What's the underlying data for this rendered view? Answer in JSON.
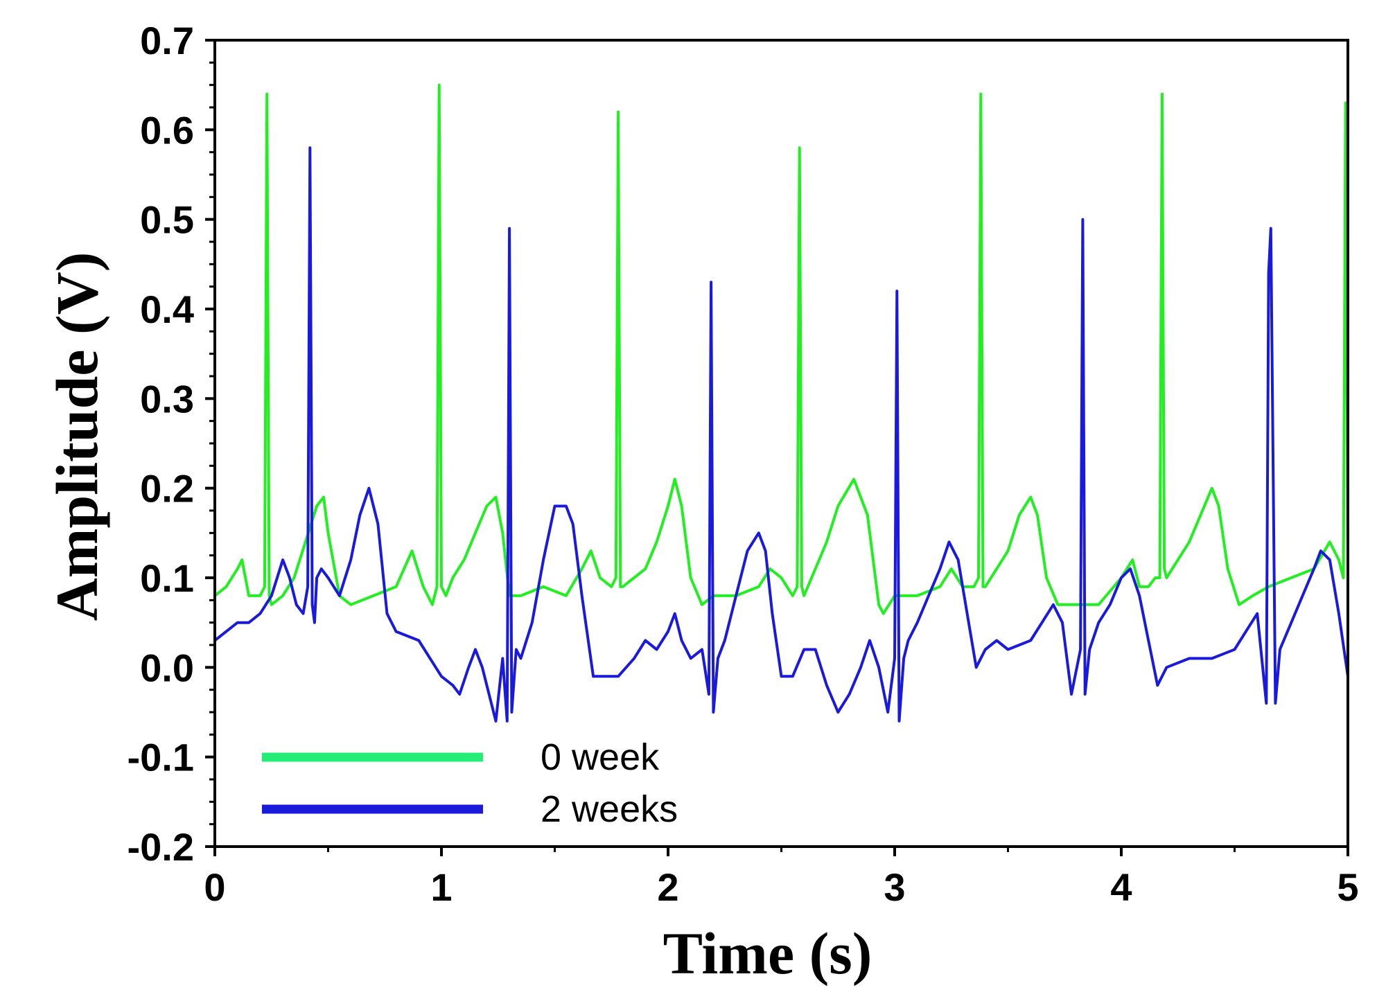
{
  "chart_data": {
    "type": "line",
    "title": "",
    "xlabel": "Time (s)",
    "ylabel": "Amplitude (V)",
    "xlim": [
      0,
      5
    ],
    "ylim": [
      -0.2,
      0.7
    ],
    "x_ticks": [
      0,
      1,
      2,
      3,
      4,
      5
    ],
    "x_tick_labels": [
      "0",
      "1",
      "2",
      "3",
      "4",
      "5"
    ],
    "y_ticks": [
      -0.2,
      -0.1,
      0.0,
      0.1,
      0.2,
      0.3,
      0.4,
      0.5,
      0.6,
      0.7
    ],
    "y_tick_labels": [
      "-0.2",
      "-0.1",
      "0.0",
      "0.1",
      "0.2",
      "0.3",
      "0.4",
      "0.5",
      "0.6",
      "0.7"
    ],
    "grid": false,
    "legend_position": "bottom-left",
    "series": [
      {
        "name": "0 week",
        "color": "#22ee22",
        "x": [
          0.0,
          0.05,
          0.1,
          0.12,
          0.15,
          0.2,
          0.22,
          0.23,
          0.24,
          0.25,
          0.3,
          0.35,
          0.4,
          0.45,
          0.48,
          0.5,
          0.55,
          0.6,
          0.7,
          0.8,
          0.87,
          0.92,
          0.96,
          0.98,
          0.99,
          1.0,
          1.02,
          1.05,
          1.1,
          1.15,
          1.2,
          1.24,
          1.27,
          1.3,
          1.35,
          1.45,
          1.55,
          1.62,
          1.66,
          1.7,
          1.75,
          1.77,
          1.78,
          1.79,
          1.8,
          1.85,
          1.9,
          1.95,
          2.0,
          2.03,
          2.06,
          2.1,
          2.15,
          2.2,
          2.3,
          2.4,
          2.45,
          2.5,
          2.55,
          2.57,
          2.58,
          2.59,
          2.6,
          2.65,
          2.7,
          2.75,
          2.82,
          2.88,
          2.93,
          2.95,
          3.0,
          3.1,
          3.2,
          3.25,
          3.3,
          3.35,
          3.37,
          3.38,
          3.39,
          3.4,
          3.45,
          3.5,
          3.55,
          3.6,
          3.63,
          3.67,
          3.72,
          3.8,
          3.9,
          4.0,
          4.05,
          4.08,
          4.12,
          4.15,
          4.17,
          4.18,
          4.19,
          4.2,
          4.25,
          4.3,
          4.35,
          4.4,
          4.43,
          4.47,
          4.52,
          4.58,
          4.65,
          4.75,
          4.85,
          4.92,
          4.96,
          4.98,
          4.99,
          5.0
        ],
        "values": [
          0.08,
          0.09,
          0.11,
          0.12,
          0.08,
          0.08,
          0.09,
          0.64,
          0.08,
          0.07,
          0.08,
          0.1,
          0.14,
          0.18,
          0.19,
          0.15,
          0.08,
          0.07,
          0.08,
          0.09,
          0.13,
          0.09,
          0.07,
          0.09,
          0.65,
          0.09,
          0.08,
          0.1,
          0.12,
          0.15,
          0.18,
          0.19,
          0.15,
          0.08,
          0.08,
          0.09,
          0.08,
          0.11,
          0.13,
          0.1,
          0.09,
          0.1,
          0.62,
          0.09,
          0.09,
          0.1,
          0.11,
          0.14,
          0.18,
          0.21,
          0.18,
          0.1,
          0.07,
          0.08,
          0.08,
          0.09,
          0.11,
          0.1,
          0.08,
          0.09,
          0.58,
          0.09,
          0.08,
          0.11,
          0.14,
          0.18,
          0.21,
          0.17,
          0.07,
          0.06,
          0.08,
          0.08,
          0.09,
          0.11,
          0.09,
          0.09,
          0.1,
          0.64,
          0.09,
          0.09,
          0.11,
          0.13,
          0.17,
          0.19,
          0.17,
          0.1,
          0.07,
          0.07,
          0.07,
          0.1,
          0.12,
          0.09,
          0.09,
          0.1,
          0.1,
          0.64,
          0.11,
          0.1,
          0.12,
          0.14,
          0.17,
          0.2,
          0.18,
          0.11,
          0.07,
          0.08,
          0.09,
          0.1,
          0.11,
          0.14,
          0.12,
          0.1,
          0.63,
          0.12
        ]
      },
      {
        "name": "2 weeks",
        "color": "#1a1adc",
        "x": [
          0.0,
          0.05,
          0.1,
          0.15,
          0.2,
          0.25,
          0.3,
          0.33,
          0.36,
          0.39,
          0.41,
          0.42,
          0.43,
          0.44,
          0.45,
          0.47,
          0.5,
          0.55,
          0.6,
          0.64,
          0.68,
          0.72,
          0.76,
          0.8,
          0.9,
          0.95,
          1.0,
          1.05,
          1.08,
          1.12,
          1.15,
          1.18,
          1.21,
          1.24,
          1.27,
          1.29,
          1.3,
          1.31,
          1.33,
          1.35,
          1.4,
          1.45,
          1.5,
          1.55,
          1.58,
          1.62,
          1.67,
          1.72,
          1.78,
          1.85,
          1.9,
          1.95,
          2.0,
          2.03,
          2.06,
          2.1,
          2.15,
          2.18,
          2.19,
          2.2,
          2.22,
          2.25,
          2.3,
          2.35,
          2.4,
          2.43,
          2.46,
          2.5,
          2.55,
          2.6,
          2.65,
          2.7,
          2.75,
          2.8,
          2.85,
          2.89,
          2.93,
          2.97,
          3.0,
          3.01,
          3.02,
          3.04,
          3.06,
          3.1,
          3.15,
          3.2,
          3.24,
          3.28,
          3.32,
          3.36,
          3.4,
          3.45,
          3.5,
          3.6,
          3.7,
          3.74,
          3.78,
          3.82,
          3.83,
          3.84,
          3.86,
          3.9,
          3.95,
          4.0,
          4.04,
          4.08,
          4.12,
          4.16,
          4.2,
          4.3,
          4.4,
          4.5,
          4.55,
          4.6,
          4.64,
          4.65,
          4.66,
          4.68,
          4.7,
          4.75,
          4.8,
          4.85,
          4.88,
          4.92,
          4.96,
          5.0
        ],
        "values": [
          0.03,
          0.04,
          0.05,
          0.05,
          0.06,
          0.08,
          0.12,
          0.1,
          0.07,
          0.06,
          0.09,
          0.58,
          0.07,
          0.05,
          0.1,
          0.11,
          0.1,
          0.08,
          0.12,
          0.17,
          0.2,
          0.16,
          0.06,
          0.04,
          0.03,
          0.01,
          -0.01,
          -0.02,
          -0.03,
          0.0,
          0.02,
          0.0,
          -0.03,
          -0.06,
          0.01,
          -0.06,
          0.49,
          -0.05,
          0.02,
          0.01,
          0.05,
          0.12,
          0.18,
          0.18,
          0.16,
          0.08,
          -0.01,
          -0.01,
          -0.01,
          0.01,
          0.03,
          0.02,
          0.04,
          0.06,
          0.03,
          0.01,
          0.02,
          -0.03,
          0.43,
          -0.05,
          0.01,
          0.03,
          0.08,
          0.13,
          0.15,
          0.13,
          0.06,
          -0.01,
          -0.01,
          0.02,
          0.02,
          -0.02,
          -0.05,
          -0.03,
          0.0,
          0.03,
          0.0,
          -0.05,
          0.01,
          0.42,
          -0.06,
          0.01,
          0.03,
          0.05,
          0.08,
          0.11,
          0.14,
          0.12,
          0.06,
          0.0,
          0.02,
          0.03,
          0.02,
          0.03,
          0.07,
          0.05,
          -0.03,
          0.02,
          0.5,
          -0.03,
          0.02,
          0.05,
          0.07,
          0.1,
          0.11,
          0.08,
          0.03,
          -0.02,
          0.0,
          0.01,
          0.01,
          0.02,
          0.04,
          0.06,
          -0.04,
          0.44,
          0.49,
          -0.04,
          0.02,
          0.05,
          0.08,
          0.11,
          0.13,
          0.12,
          0.06,
          -0.01
        ]
      }
    ]
  }
}
